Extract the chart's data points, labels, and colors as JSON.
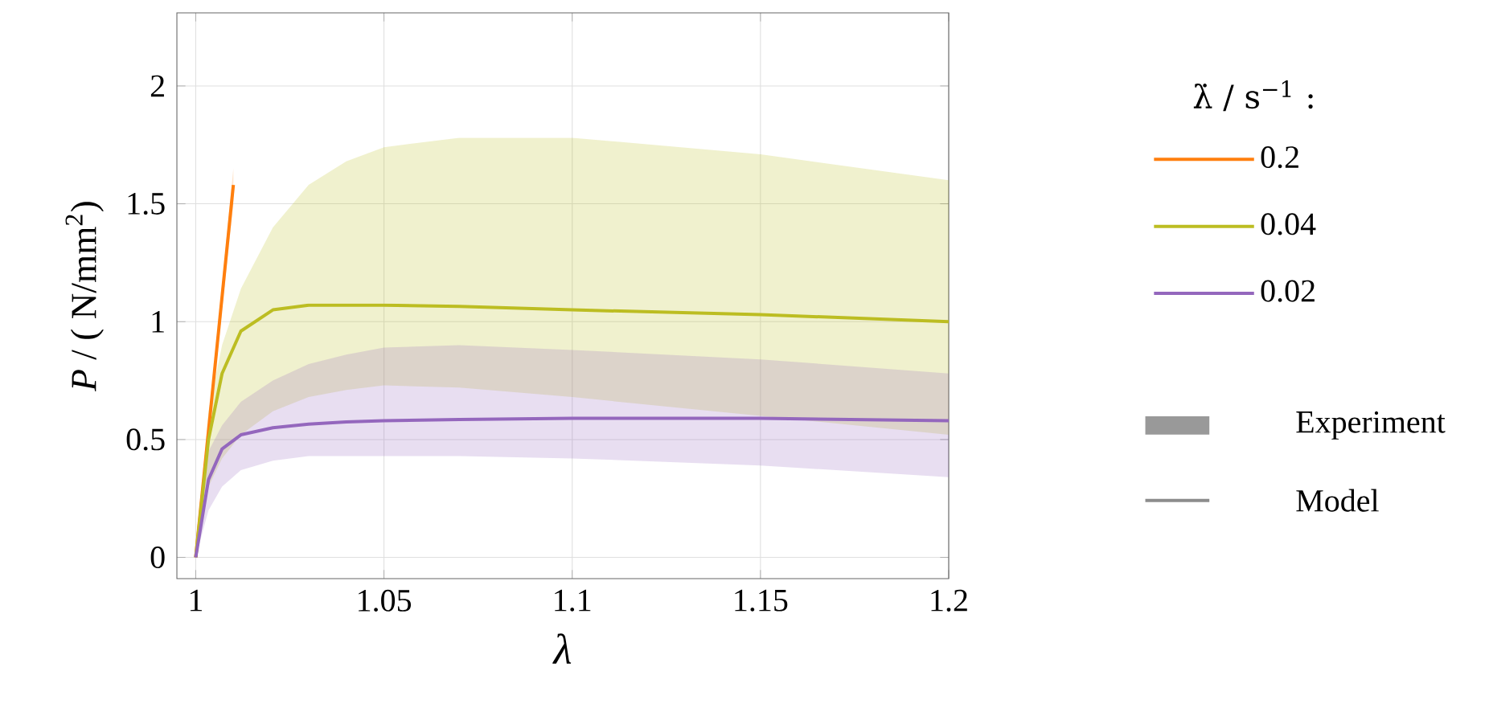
{
  "chart_data": {
    "type": "line",
    "xlabel": "λ",
    "ylabel": "*P* / ( N/mm$^{2}$)",
    "legend_title": "λ̇ / s$^{−1}$ :",
    "xlim": [
      0.995,
      1.2
    ],
    "ylim": [
      -0.09,
      2.31
    ],
    "xticks": [
      1,
      1.05,
      1.1,
      1.15,
      1.2
    ],
    "yticks": [
      0,
      0.5,
      1,
      1.5,
      2
    ],
    "grid": true,
    "legend": "right",
    "series": [
      {
        "name": "0.2",
        "color": "#ff7f0e",
        "x": [
          1,
          1.01
        ],
        "values": [
          0,
          1.58
        ],
        "lower": [
          0,
          1.5
        ],
        "upper": [
          0,
          1.65
        ]
      },
      {
        "name": "0.04",
        "color": "#bcbd22",
        "x": [
          1,
          1.0034,
          1.007,
          1.012,
          1.0205,
          1.03,
          1.04,
          1.05,
          1.07,
          1.1,
          1.15,
          1.2
        ],
        "values": [
          0,
          0.5,
          0.78,
          0.96,
          1.05,
          1.07,
          1.07,
          1.07,
          1.065,
          1.05,
          1.03,
          1.0
        ],
        "lower": [
          0,
          0.3,
          0.42,
          0.52,
          0.62,
          0.68,
          0.71,
          0.73,
          0.72,
          0.68,
          0.6,
          0.52
        ],
        "upper": [
          0,
          0.62,
          0.9,
          1.14,
          1.4,
          1.58,
          1.68,
          1.74,
          1.78,
          1.78,
          1.71,
          1.6
        ]
      },
      {
        "name": "0.02",
        "color": "#9467bd",
        "x": [
          1,
          1.0034,
          1.007,
          1.012,
          1.0205,
          1.03,
          1.04,
          1.05,
          1.07,
          1.1,
          1.15,
          1.2
        ],
        "values": [
          0,
          0.33,
          0.46,
          0.52,
          0.55,
          0.565,
          0.575,
          0.58,
          0.585,
          0.59,
          0.59,
          0.58
        ],
        "lower": [
          0,
          0.2,
          0.3,
          0.37,
          0.41,
          0.43,
          0.43,
          0.43,
          0.43,
          0.42,
          0.39,
          0.34
        ],
        "upper": [
          0,
          0.45,
          0.56,
          0.66,
          0.75,
          0.82,
          0.86,
          0.89,
          0.9,
          0.88,
          0.84,
          0.78
        ]
      }
    ],
    "annotations": [
      "Experiment",
      "Model"
    ]
  }
}
